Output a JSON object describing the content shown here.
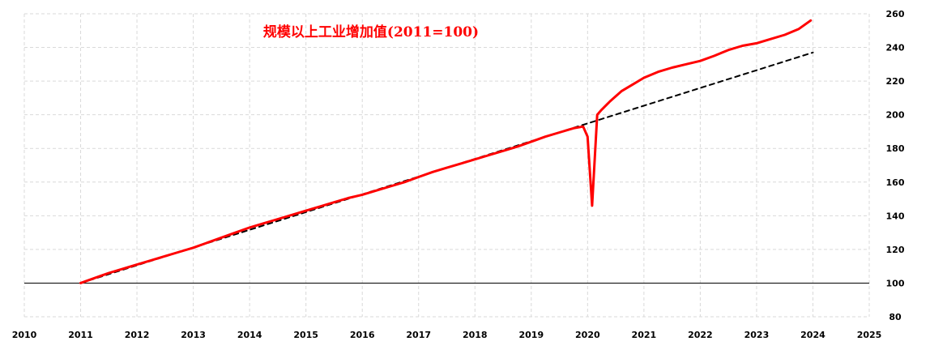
{
  "chart_data": {
    "type": "line",
    "title": "规模以上工业增加值(2011=100)",
    "xlabel": "",
    "ylabel": "",
    "xlim": [
      2010,
      2025
    ],
    "ylim": [
      80,
      260
    ],
    "x_ticks": [
      "2010",
      "2011",
      "2012",
      "2013",
      "2014",
      "2015",
      "2016",
      "2017",
      "2018",
      "2019",
      "2020",
      "2021",
      "2022",
      "2023",
      "2024",
      "2025"
    ],
    "y_ticks": [
      "80",
      "100",
      "120",
      "140",
      "160",
      "180",
      "200",
      "220",
      "240",
      "260"
    ],
    "grid": true,
    "reference_line": 100,
    "series": [
      {
        "color": "#ff0000",
        "style": "solid",
        "x": [
          2011.0,
          2011.25,
          2011.5,
          2011.75,
          2012.0,
          2012.25,
          2012.5,
          2012.75,
          2013.0,
          2013.25,
          2013.5,
          2013.75,
          2014.0,
          2014.25,
          2014.5,
          2014.75,
          2015.0,
          2015.25,
          2015.5,
          2015.75,
          2016.0,
          2016.25,
          2016.5,
          2016.75,
          2017.0,
          2017.25,
          2017.5,
          2017.75,
          2018.0,
          2018.25,
          2018.5,
          2018.75,
          2019.0,
          2019.25,
          2019.5,
          2019.75,
          2019.92,
          2020.0,
          2020.08,
          2020.17,
          2020.25,
          2020.4,
          2020.6,
          2020.8,
          2021.0,
          2021.25,
          2021.5,
          2021.75,
          2022.0,
          2022.25,
          2022.5,
          2022.75,
          2023.0,
          2023.25,
          2023.5,
          2023.75,
          2023.96
        ],
        "y": [
          100,
          103,
          106,
          108.5,
          111,
          113.5,
          116,
          118.5,
          121,
          124,
          127,
          130,
          133,
          135.5,
          138,
          140.5,
          143,
          145.5,
          148,
          150.5,
          152.5,
          155,
          157.5,
          160,
          163,
          166,
          168.5,
          171,
          173.5,
          176,
          178.5,
          181,
          184,
          187,
          189.5,
          192,
          193,
          187,
          146,
          200,
          203,
          208,
          214,
          218,
          222,
          225.5,
          228,
          230,
          232,
          235,
          238.5,
          241,
          242.5,
          245,
          247.5,
          251,
          256
        ]
      },
      {
        "color": "#000000",
        "style": "dashed",
        "x": [
          2011.0,
          2024.0
        ],
        "y": [
          100,
          237
        ]
      }
    ]
  }
}
